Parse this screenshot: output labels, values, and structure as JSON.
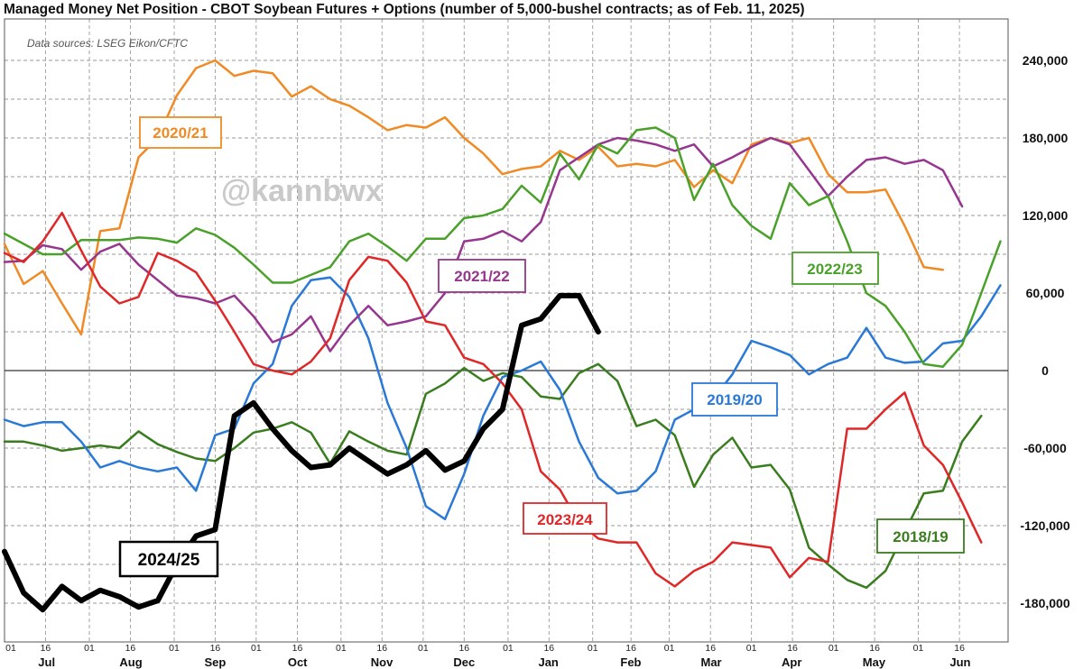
{
  "title": "Managed Money Net Position - CBOT Soybean Futures + Options (number of 5,000-bushel contracts; as of Feb. 11, 2025)",
  "source_note": "Data sources: LSEG Eikon/CFTC",
  "watermark": "@kannbwx",
  "chart_data": {
    "type": "line",
    "title": "Managed Money Net Position - CBOT Soybean Futures + Options (number of 5,000-bushel contracts; as of Feb. 11, 2025)",
    "xlabel": "",
    "ylabel": "",
    "ylim": [
      -205000,
      275000
    ],
    "yticks": [
      240000,
      180000,
      120000,
      60000,
      0,
      -60000,
      -120000,
      -180000
    ],
    "ytick_labels": [
      "240,000",
      "180,000",
      "120,000",
      "60,000",
      "0",
      "-60,000",
      "-120,000",
      "-180,000"
    ],
    "x_unit": "week index from Jul 01 (0 to 52)",
    "xlim": [
      0,
      52.4
    ],
    "day_ticks": [
      {
        "label": "01",
        "x": 0
      },
      {
        "label": "16",
        "x": 2.14
      },
      {
        "label": "01",
        "x": 4.43
      },
      {
        "label": "16",
        "x": 6.57
      },
      {
        "label": "01",
        "x": 8.86
      },
      {
        "label": "16",
        "x": 11.0
      },
      {
        "label": "01",
        "x": 13.14
      },
      {
        "label": "16",
        "x": 15.29
      },
      {
        "label": "01",
        "x": 17.57
      },
      {
        "label": "16",
        "x": 19.71
      },
      {
        "label": "01",
        "x": 21.86
      },
      {
        "label": "16",
        "x": 24.0
      },
      {
        "label": "01",
        "x": 26.29
      },
      {
        "label": "16",
        "x": 28.43
      },
      {
        "label": "01",
        "x": 30.71
      },
      {
        "label": "16",
        "x": 32.71
      },
      {
        "label": "01",
        "x": 34.71
      },
      {
        "label": "16",
        "x": 36.86
      },
      {
        "label": "01",
        "x": 39.0
      },
      {
        "label": "16",
        "x": 41.14
      },
      {
        "label": "01",
        "x": 43.29
      },
      {
        "label": "16",
        "x": 45.43
      },
      {
        "label": "01",
        "x": 47.71
      },
      {
        "label": "16",
        "x": 49.86
      }
    ],
    "month_labels": [
      {
        "label": "Jul",
        "x": 2.2
      },
      {
        "label": "Aug",
        "x": 6.6
      },
      {
        "label": "Sep",
        "x": 11.0
      },
      {
        "label": "Oct",
        "x": 15.3
      },
      {
        "label": "Nov",
        "x": 19.7
      },
      {
        "label": "Dec",
        "x": 24.0
      },
      {
        "label": "Jan",
        "x": 28.4
      },
      {
        "label": "Feb",
        "x": 32.7
      },
      {
        "label": "Mar",
        "x": 36.9
      },
      {
        "label": "Apr",
        "x": 41.1
      },
      {
        "label": "May",
        "x": 45.4
      },
      {
        "label": "Jun",
        "x": 49.9
      }
    ],
    "grid": true,
    "series": [
      {
        "name": "2018/19",
        "color": "#3a7d1e",
        "width": 2.5,
        "values": [
          -55000,
          -55000,
          -58000,
          -62000,
          -60000,
          -58000,
          -60000,
          -47000,
          -57000,
          -63000,
          -68000,
          -70000,
          -60000,
          -48000,
          -45000,
          -40000,
          -48000,
          -72000,
          -47000,
          -55000,
          -62000,
          -65000,
          -18000,
          -10000,
          2000,
          -8000,
          -2000,
          -5000,
          -20000,
          -22000,
          -2000,
          5000,
          -8000,
          -43000,
          -38000,
          -50000,
          -90000,
          -65000,
          -52000,
          -75000,
          -73000,
          -92000,
          -137000,
          -150000,
          -162000,
          -168000,
          -155000,
          -125000,
          -95000,
          -93000,
          -55000,
          -35000
        ]
      },
      {
        "name": "2019/20",
        "color": "#2a79d6",
        "width": 2.5,
        "values": [
          -38000,
          -43000,
          -40000,
          -40000,
          -55000,
          -75000,
          -70000,
          -75000,
          -78000,
          -75000,
          -93000,
          -50000,
          -45000,
          -10000,
          5000,
          50000,
          70000,
          72000,
          57000,
          25000,
          -25000,
          -60000,
          -105000,
          -115000,
          -80000,
          -35000,
          -5000,
          0,
          7000,
          -15000,
          -55000,
          -83000,
          -95000,
          -93000,
          -78000,
          -38000,
          -30000,
          -22000,
          -3000,
          23000,
          18000,
          12000,
          -3000,
          5000,
          10000,
          33000,
          10000,
          6000,
          7000,
          21000,
          23000,
          42000,
          66000
        ]
      },
      {
        "name": "2020/21",
        "color": "#f08a24",
        "width": 2.5,
        "values": [
          98000,
          67000,
          77000,
          52000,
          28000,
          108000,
          110000,
          165000,
          180000,
          213000,
          234000,
          240000,
          228000,
          232000,
          230000,
          212000,
          220000,
          210000,
          205000,
          196000,
          186000,
          190000,
          188000,
          196000,
          180000,
          168000,
          152000,
          156000,
          158000,
          170000,
          163000,
          173000,
          158000,
          160000,
          158000,
          163000,
          142000,
          155000,
          145000,
          175000,
          180000,
          176000,
          180000,
          152000,
          138000,
          138000,
          140000,
          112000,
          80000,
          78000
        ]
      },
      {
        "name": "2021/22",
        "color": "#96368f",
        "width": 2.5,
        "values": [
          84000,
          85000,
          97000,
          94000,
          78000,
          92000,
          98000,
          82000,
          70000,
          58000,
          56000,
          52000,
          58000,
          42000,
          22000,
          28000,
          42000,
          15000,
          35000,
          50000,
          35000,
          38000,
          42000,
          60000,
          100000,
          102000,
          108000,
          100000,
          115000,
          155000,
          165000,
          175000,
          180000,
          178000,
          175000,
          170000,
          175000,
          158000,
          165000,
          173000,
          180000,
          175000,
          155000,
          135000,
          150000,
          163000,
          165000,
          160000,
          163000,
          155000,
          127000
        ]
      },
      {
        "name": "2022/23",
        "color": "#4aa12a",
        "width": 2.5,
        "values": [
          106000,
          98000,
          90000,
          90000,
          101000,
          101000,
          101000,
          103000,
          102000,
          99000,
          110000,
          105000,
          95000,
          82000,
          68000,
          68000,
          74000,
          80000,
          100000,
          106000,
          96000,
          85000,
          102000,
          102000,
          118000,
          120000,
          125000,
          143000,
          130000,
          168000,
          148000,
          175000,
          168000,
          186000,
          188000,
          180000,
          132000,
          160000,
          128000,
          112000,
          102000,
          145000,
          128000,
          135000,
          100000,
          60000,
          50000,
          30000,
          5000,
          3000,
          20000,
          60000,
          100000
        ]
      },
      {
        "name": "2023/24",
        "color": "#e02727",
        "width": 2.5,
        "values": [
          91000,
          84000,
          100000,
          122000,
          93000,
          65000,
          52000,
          57000,
          91000,
          85000,
          76000,
          54000,
          30000,
          5000,
          0,
          -3000,
          7000,
          25000,
          70000,
          88000,
          85000,
          68000,
          38000,
          35000,
          10000,
          5000,
          -10000,
          -30000,
          -78000,
          -92000,
          -118000,
          -130000,
          -133000,
          -133000,
          -157000,
          -167000,
          -155000,
          -148000,
          -133000,
          -135000,
          -137000,
          -160000,
          -145000,
          -148000,
          -45000,
          -45000,
          -30000,
          -17000,
          -58000,
          -73000,
          -102000,
          -133000
        ]
      },
      {
        "name": "2024/25",
        "color": "#000000",
        "width": 6,
        "values": [
          -140000,
          -172000,
          -185000,
          -167000,
          -178000,
          -170000,
          -175000,
          -183000,
          -178000,
          -150000,
          -128000,
          -123000,
          -35000,
          -25000,
          -45000,
          -62000,
          -75000,
          -73000,
          -60000,
          -70000,
          -80000,
          -73000,
          -62000,
          -77000,
          -70000,
          -45000,
          -30000,
          35000,
          40000,
          58000,
          58000,
          30000
        ]
      }
    ],
    "annotations": [
      "2020/21",
      "2021/22",
      "2022/23",
      "2019/20",
      "2023/24",
      "2018/19",
      "2024/25"
    ],
    "legend_placement": "inline boxed labels next to each line"
  }
}
